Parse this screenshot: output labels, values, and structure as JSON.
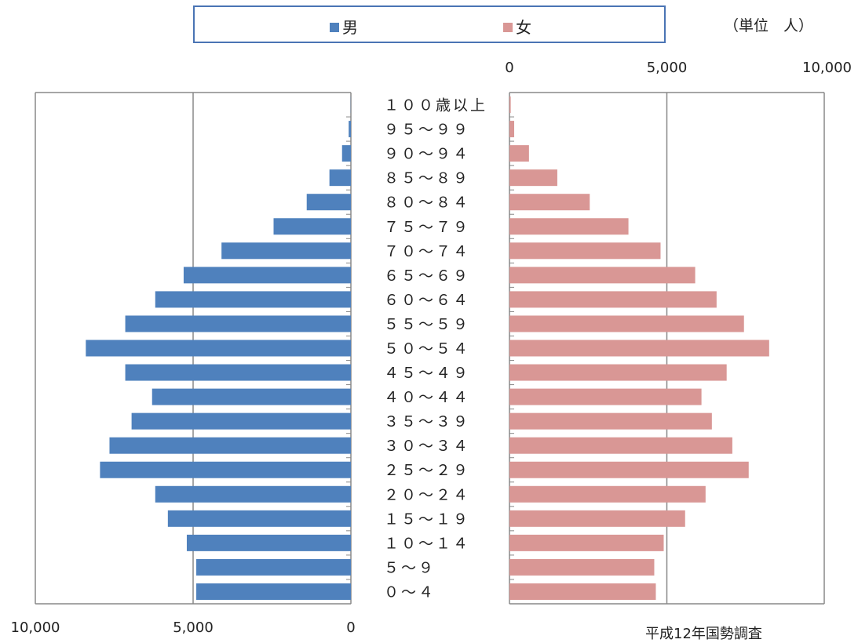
{
  "legend": {
    "male_label": "男",
    "female_label": "女"
  },
  "unit_label": "（単位　人）",
  "source_label": "平成12年国勢調査",
  "colors": {
    "male": "#4f81bd",
    "female": "#d99795",
    "legend_border": "#4a74b4",
    "axis": "#888888"
  },
  "chart_data": {
    "type": "bar",
    "orientation": "horizontal-population-pyramid",
    "categories": [
      "100歳以上",
      "95～99",
      "90～94",
      "85～89",
      "80～84",
      "75～79",
      "70～74",
      "65～69",
      "60～64",
      "55～59",
      "50～54",
      "45～49",
      "40～44",
      "35～39",
      "30～34",
      "25～29",
      "20～24",
      "15～19",
      "10～14",
      "5～9",
      "0～4"
    ],
    "category_labels": [
      "１００歳以上",
      "９５～９９",
      "９０～９４",
      "８５～８９",
      "８０～８４",
      "７５～７９",
      "７０～７４",
      "６５～６９",
      "６０～６４",
      "５５～５９",
      "５０～５４",
      "４５～４９",
      "４０～４４",
      "３５～３９",
      "３０～３４",
      "２５～２９",
      "２０～２４",
      "１５～１９",
      "１０～１４",
      "５～９",
      "０～４"
    ],
    "series": [
      {
        "name": "男",
        "values": [
          5,
          70,
          280,
          680,
          1400,
          2450,
          4100,
          5300,
          6200,
          7150,
          8400,
          7150,
          6300,
          6950,
          7650,
          7950,
          6200,
          5800,
          5200,
          4900,
          4900
        ]
      },
      {
        "name": "女",
        "values": [
          40,
          150,
          620,
          1520,
          2550,
          3780,
          4800,
          5900,
          6580,
          7450,
          8250,
          6900,
          6100,
          6430,
          7080,
          7600,
          6230,
          5580,
          4900,
          4600,
          4650
        ]
      }
    ],
    "male_axis": {
      "range": [
        10000,
        0
      ],
      "tick_values": [
        10000,
        5000,
        0
      ],
      "tick_labels": [
        "10,000",
        "5,000",
        "0"
      ],
      "position": "bottom"
    },
    "female_axis": {
      "range": [
        0,
        10000
      ],
      "tick_values": [
        0,
        5000,
        10000
      ],
      "tick_labels": [
        "0",
        "5,000",
        "10,000"
      ],
      "position": "top"
    },
    "grid": true,
    "legend_position": "top"
  }
}
